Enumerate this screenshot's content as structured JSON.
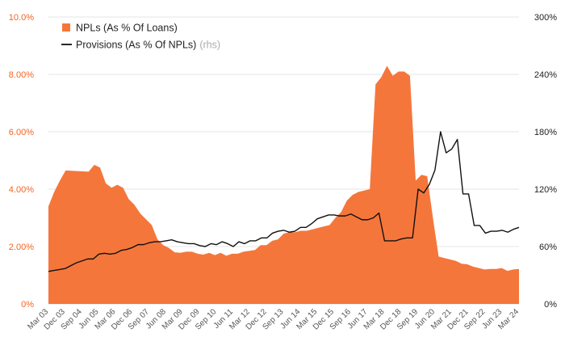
{
  "chart_data": {
    "type": "area",
    "title": "",
    "xlabel": "",
    "ylabel": "",
    "grid": true,
    "legend_position": "top-left",
    "colors": {
      "npl_area": "#f5763b",
      "provisions_line": "#111111",
      "left_axis_text": "#f26522",
      "right_axis_text": "#222222"
    },
    "y_left": {
      "min": 0,
      "max": 10,
      "ticks": [
        0,
        2,
        4,
        6,
        8,
        10
      ],
      "tick_labels": [
        "0%",
        "2.00%",
        "4.00%",
        "6.00%",
        "8.00%",
        "10.0%"
      ]
    },
    "y_right": {
      "min": 0,
      "max": 300,
      "ticks": [
        0,
        60,
        120,
        180,
        240,
        300
      ],
      "tick_labels": [
        "0%",
        "60%",
        "120%",
        "180%",
        "240%",
        "300%"
      ]
    },
    "x_tick_labels": [
      "Mar 03",
      "Dec 03",
      "Sep 04",
      "Jun 05",
      "Mar 06",
      "Dec 06",
      "Sep 07",
      "Jun 08",
      "Mar 09",
      "Dec 09",
      "Sep 10",
      "Jun 11",
      "Mar 12",
      "Dec 12",
      "Sep 13",
      "Jun 14",
      "Mar 15",
      "Dec 15",
      "Sep 16",
      "Jun 17",
      "Mar 18",
      "Dec 18",
      "Sep 19",
      "Jun 20",
      "Mar 21",
      "Dec 21",
      "Sep 22",
      "Jun 23",
      "Mar 24"
    ],
    "series": [
      {
        "name": "NPLs (As % Of Loans)",
        "axis": "left",
        "style": "area",
        "values": [
          3.4,
          3.9,
          4.3,
          4.65,
          4.64,
          4.63,
          4.62,
          4.61,
          4.85,
          4.75,
          4.2,
          4.05,
          4.15,
          4.05,
          3.65,
          3.45,
          3.15,
          2.95,
          2.75,
          2.25,
          2.05,
          1.95,
          1.8,
          1.78,
          1.82,
          1.82,
          1.75,
          1.72,
          1.78,
          1.7,
          1.78,
          1.68,
          1.75,
          1.75,
          1.82,
          1.85,
          1.88,
          2.05,
          2.05,
          2.2,
          2.25,
          2.45,
          2.5,
          2.5,
          2.55,
          2.55,
          2.6,
          2.65,
          2.7,
          2.75,
          3.0,
          3.2,
          3.6,
          3.8,
          3.9,
          3.95,
          4.0,
          7.65,
          7.9,
          8.3,
          7.95,
          8.1,
          8.1,
          7.95,
          4.3,
          4.5,
          4.45,
          3.0,
          1.65,
          1.6,
          1.55,
          1.5,
          1.4,
          1.38,
          1.3,
          1.25,
          1.2,
          1.22,
          1.22,
          1.25,
          1.15,
          1.2,
          1.22
        ]
      },
      {
        "name": "Provisions (As % Of NPLs)",
        "name_note": "(rhs)",
        "axis": "right",
        "style": "line",
        "values": [
          34,
          35,
          36,
          37,
          40,
          43,
          45,
          47,
          47,
          52,
          53,
          52,
          53,
          56,
          57,
          59,
          62,
          62,
          64,
          65,
          65,
          66,
          67,
          65,
          64,
          63,
          63,
          61,
          60,
          63,
          62,
          65,
          63,
          60,
          65,
          63,
          66,
          66,
          69,
          69,
          74,
          76,
          77,
          75,
          76,
          80,
          80,
          84,
          89,
          91,
          93,
          93,
          92,
          92,
          94,
          91,
          88,
          88,
          90,
          95,
          66,
          66,
          66,
          68,
          69,
          69,
          120,
          116,
          125,
          140,
          180,
          158,
          162,
          172,
          115,
          115,
          82,
          82,
          74,
          76,
          76,
          77,
          75,
          78,
          80
        ]
      }
    ]
  }
}
